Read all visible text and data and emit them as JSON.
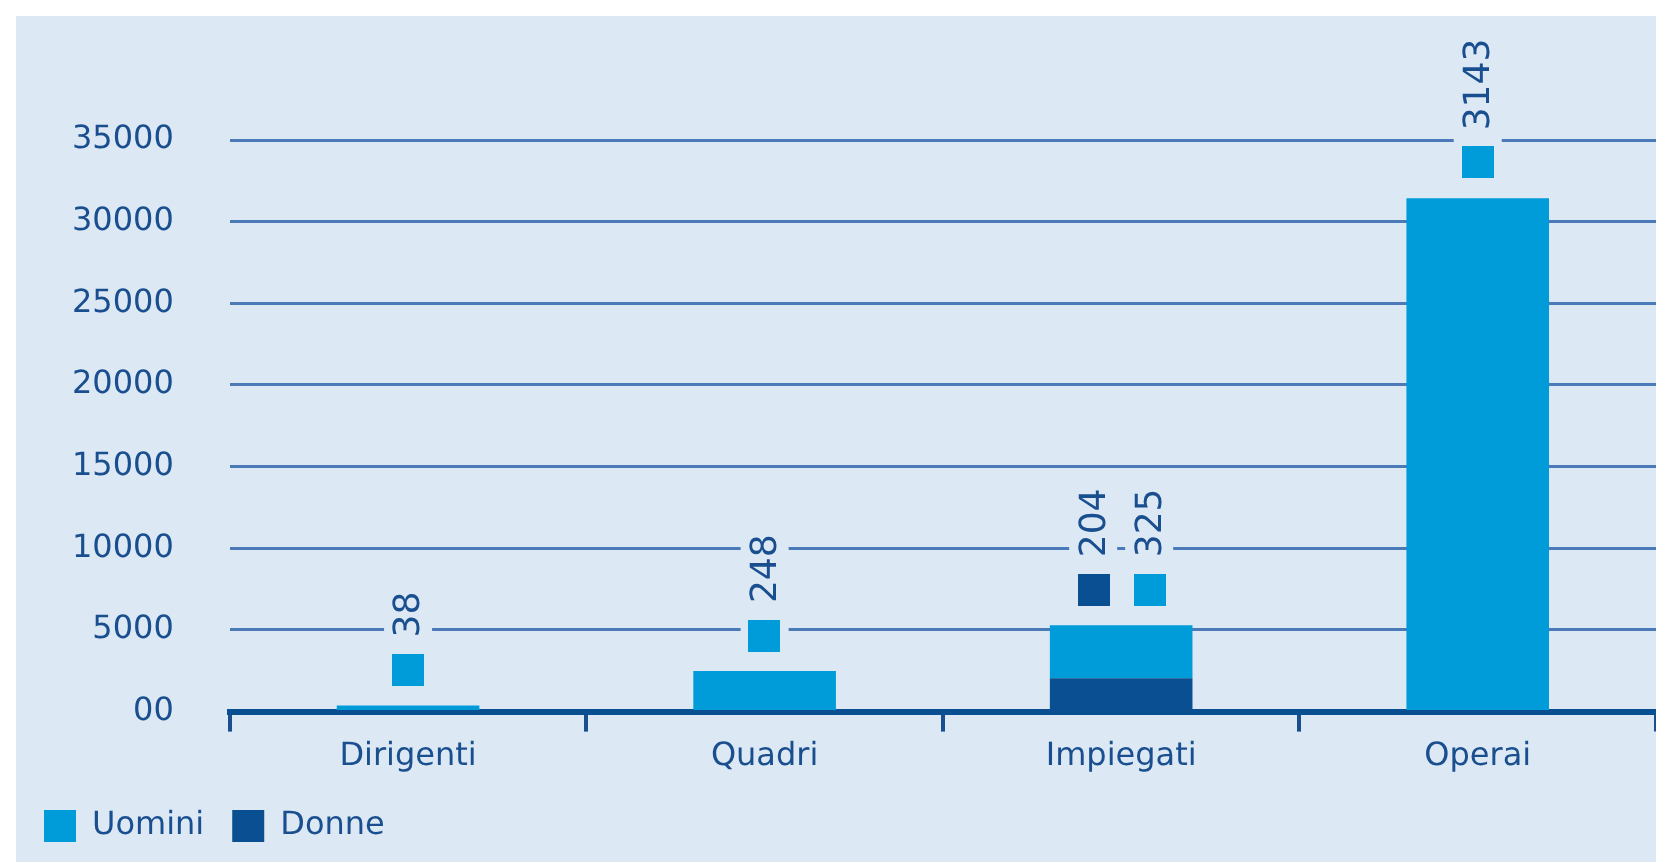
{
  "chart_data": {
    "type": "bar",
    "stacked": true,
    "categories": [
      "Dirigenti",
      "Quadri",
      "Impiegati",
      "Operai"
    ],
    "series": [
      {
        "name": "Donne",
        "color": "#0a4f91",
        "values": [
          null,
          null,
          2040,
          null
        ]
      },
      {
        "name": "Uomini",
        "color": "#009bd9",
        "values": [
          380,
          2480,
          3250,
          31430
        ]
      }
    ],
    "annotations": [
      {
        "text": "38",
        "x": "Dirigenti",
        "y": 380
      },
      {
        "text": "248",
        "x": "Quadri",
        "y": 2480
      },
      {
        "text": "204",
        "x": "Impiegati",
        "y": 5290
      },
      {
        "text": "325",
        "x": "Impiegati",
        "y": 5290
      },
      {
        "text": "3143",
        "x": "Operai",
        "y": 31430
      }
    ],
    "ylim": [
      0,
      35000
    ],
    "yticks": [
      {
        "value": 0,
        "label": "00"
      },
      5000,
      10000,
      15000,
      20000,
      25000,
      30000,
      35000
    ],
    "grid": "y",
    "legend": "bottom left"
  }
}
